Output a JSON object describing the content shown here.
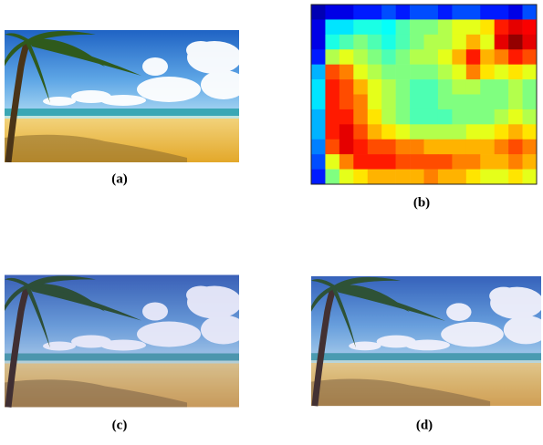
{
  "panels": [
    {
      "label": "(a)"
    },
    {
      "label": "(b)"
    },
    {
      "label": "(c)"
    },
    {
      "label": "(d)"
    }
  ],
  "heatmap": {
    "rows": [
      [
        0.05,
        0.1,
        0.1,
        0.15,
        0.15,
        0.2,
        0.15,
        0.2,
        0.2,
        0.15,
        0.2,
        0.2,
        0.15,
        0.15,
        0.1,
        0.2
      ],
      [
        0.1,
        0.35,
        0.35,
        0.4,
        0.4,
        0.38,
        0.45,
        0.5,
        0.5,
        0.55,
        0.6,
        0.6,
        0.65,
        0.85,
        0.9,
        0.88
      ],
      [
        0.1,
        0.4,
        0.45,
        0.5,
        0.45,
        0.4,
        0.45,
        0.5,
        0.55,
        0.55,
        0.6,
        0.7,
        0.6,
        0.9,
        0.98,
        0.9
      ],
      [
        0.15,
        0.55,
        0.6,
        0.55,
        0.5,
        0.45,
        0.5,
        0.55,
        0.55,
        0.6,
        0.7,
        0.85,
        0.7,
        0.75,
        0.85,
        0.8
      ],
      [
        0.3,
        0.8,
        0.75,
        0.6,
        0.55,
        0.5,
        0.5,
        0.5,
        0.5,
        0.55,
        0.6,
        0.75,
        0.65,
        0.6,
        0.65,
        0.6
      ],
      [
        0.35,
        0.85,
        0.8,
        0.7,
        0.6,
        0.55,
        0.5,
        0.45,
        0.45,
        0.5,
        0.55,
        0.55,
        0.5,
        0.5,
        0.55,
        0.5
      ],
      [
        0.35,
        0.85,
        0.8,
        0.75,
        0.6,
        0.55,
        0.5,
        0.45,
        0.45,
        0.5,
        0.5,
        0.5,
        0.5,
        0.5,
        0.55,
        0.5
      ],
      [
        0.3,
        0.85,
        0.85,
        0.75,
        0.65,
        0.55,
        0.5,
        0.45,
        0.45,
        0.45,
        0.5,
        0.5,
        0.5,
        0.55,
        0.6,
        0.55
      ],
      [
        0.3,
        0.85,
        0.9,
        0.8,
        0.7,
        0.65,
        0.6,
        0.55,
        0.55,
        0.55,
        0.55,
        0.6,
        0.6,
        0.65,
        0.7,
        0.65
      ],
      [
        0.25,
        0.8,
        0.9,
        0.85,
        0.8,
        0.8,
        0.75,
        0.75,
        0.7,
        0.7,
        0.7,
        0.7,
        0.7,
        0.75,
        0.8,
        0.75
      ],
      [
        0.2,
        0.6,
        0.75,
        0.85,
        0.85,
        0.85,
        0.8,
        0.8,
        0.8,
        0.8,
        0.75,
        0.75,
        0.7,
        0.7,
        0.75,
        0.7
      ],
      [
        0.15,
        0.5,
        0.6,
        0.65,
        0.7,
        0.7,
        0.7,
        0.7,
        0.75,
        0.7,
        0.7,
        0.65,
        0.6,
        0.6,
        0.65,
        0.6
      ]
    ]
  }
}
